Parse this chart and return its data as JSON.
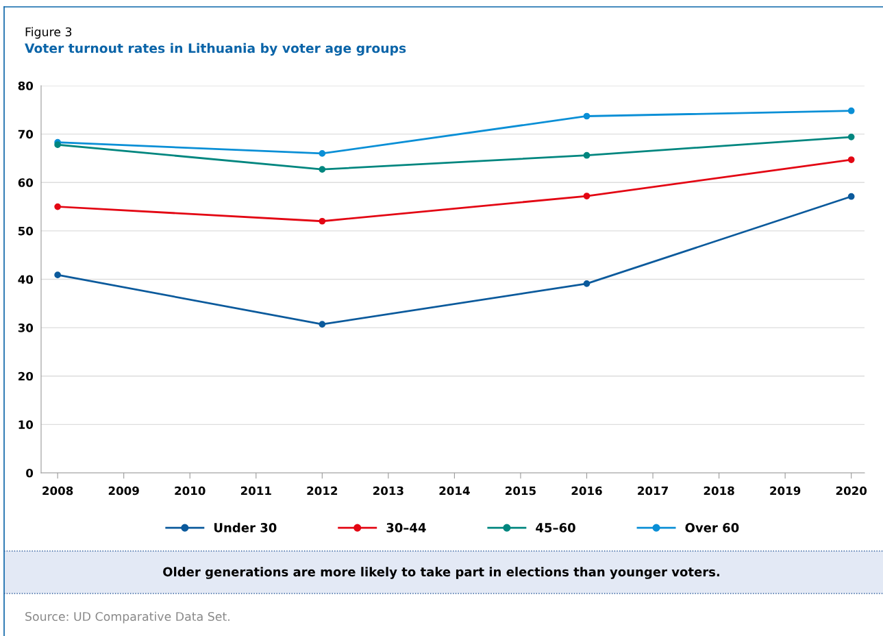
{
  "chart_data": {
    "type": "line",
    "title": "Voter turnout rates in Lithuania by voter age groups",
    "x": [
      2008,
      2012,
      2016,
      2020
    ],
    "series": [
      {
        "name": "Under 30",
        "color": "#0b5a9c",
        "values": [
          40.9,
          30.7,
          39.1,
          57.1
        ]
      },
      {
        "name": "30–44",
        "color": "#e30613",
        "values": [
          55.0,
          52.0,
          57.2,
          64.7
        ]
      },
      {
        "name": "45–60",
        "color": "#00867f",
        "values": [
          67.8,
          62.7,
          65.6,
          69.4
        ]
      },
      {
        "name": "Over 60",
        "color": "#0a8fd6",
        "values": [
          68.3,
          66.0,
          73.7,
          74.8
        ]
      }
    ],
    "xlim": [
      2007.75,
      2020.2
    ],
    "xticks": [
      2008,
      2009,
      2010,
      2011,
      2012,
      2013,
      2014,
      2015,
      2016,
      2017,
      2018,
      2019,
      2020
    ],
    "ylim": [
      0,
      80
    ],
    "yticks": [
      0,
      10,
      20,
      30,
      40,
      50,
      60,
      70,
      80
    ],
    "grid": "y",
    "legend": "bottom",
    "marker": "circle",
    "line_style": "solid",
    "annotations": [
      "Figure 3",
      "Older generations are more likely to take part in elections than younger voters.",
      "Source: UD Comparative Data Set."
    ]
  }
}
